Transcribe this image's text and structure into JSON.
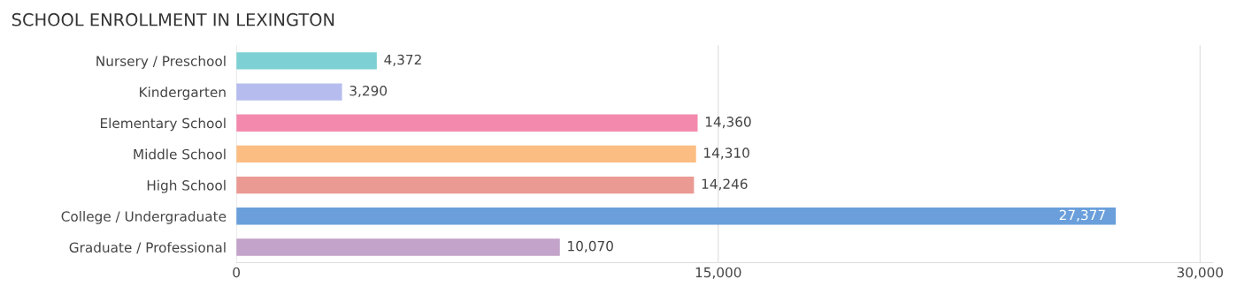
{
  "chart_data": {
    "type": "bar",
    "orientation": "horizontal",
    "title": "SCHOOL ENROLLMENT IN LEXINGTON",
    "categories": [
      "Nursery / Preschool",
      "Kindergarten",
      "Elementary School",
      "Middle School",
      "High School",
      "College / Undergraduate",
      "Graduate / Professional"
    ],
    "values": [
      4372,
      3290,
      14360,
      14310,
      14246,
      27377,
      10070
    ],
    "colors": [
      "#7dd0d3",
      "#b6bdee",
      "#f489ae",
      "#fbbd82",
      "#ea9a93",
      "#6a9fdb",
      "#c3a3c9"
    ],
    "value_labels": [
      "4,372",
      "3,290",
      "14,360",
      "14,310",
      "14,246",
      "27,377",
      "10,070"
    ],
    "xlim": [
      0,
      30400
    ],
    "xticks": [
      {
        "value": 0,
        "label": "0"
      },
      {
        "value": 15000,
        "label": "15,000"
      },
      {
        "value": 30000,
        "label": "30,000"
      }
    ],
    "grid": "x",
    "legend": false
  }
}
